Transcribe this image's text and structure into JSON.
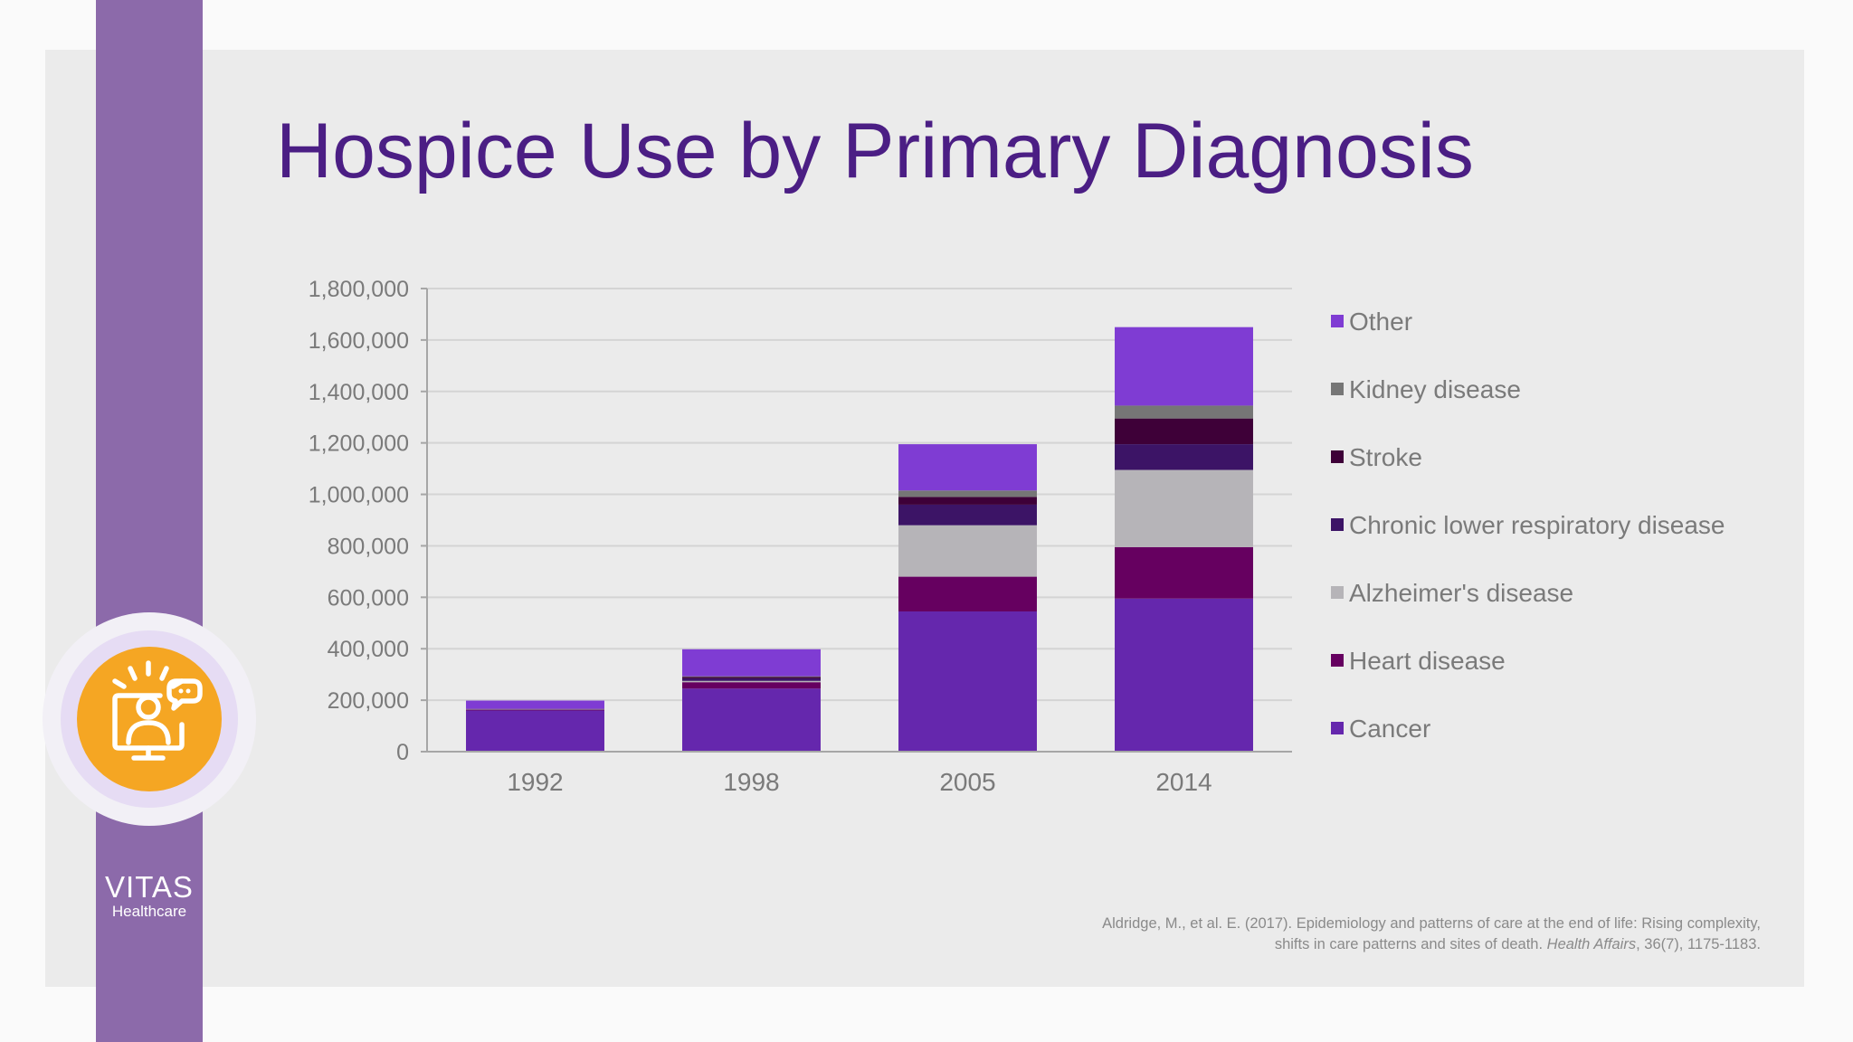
{
  "colors": {
    "panel": "#ebebeb",
    "side_band": "#8c6aaa",
    "title": "#4b1e84",
    "icon_circle": "#f5a623"
  },
  "slide": {
    "title": "Hospice Use by Primary Diagnosis",
    "logo": {
      "brand": "VITAS",
      "sub": "Healthcare"
    },
    "icon": "person-at-monitor-with-chat-icon",
    "citation": {
      "line1": "Aldridge, M., et al. E. (2017). Epidemiology and patterns of care at the end of life: Rising complexity,",
      "line2_prefix": "shifts in care patterns and sites of death. ",
      "journal": "Health Affairs",
      "line2_suffix": ", 36(7), 1175-1183."
    }
  },
  "chart_data": {
    "type": "bar",
    "stacked": true,
    "title": "",
    "xlabel": "",
    "ylabel": "",
    "categories": [
      "1992",
      "1998",
      "2005",
      "2014"
    ],
    "ylim": [
      0,
      1800000
    ],
    "yticks": [
      0,
      200000,
      400000,
      600000,
      800000,
      1000000,
      1200000,
      1400000,
      1600000,
      1800000
    ],
    "ytick_labels": [
      "0",
      "200,000",
      "400,000",
      "600,000",
      "800,000",
      "1,000,000",
      "1,200,000",
      "1,400,000",
      "1,600,000",
      "1,800,000"
    ],
    "grid": true,
    "legend_position": "right",
    "series": [
      {
        "name": "Cancer",
        "color": "#6527ad",
        "values": [
          160000,
          245000,
          545000,
          595000
        ]
      },
      {
        "name": "Heart disease",
        "color": "#660060",
        "values": [
          3000,
          25000,
          135000,
          200000
        ]
      },
      {
        "name": "Alzheimer's disease",
        "color": "#b6b4b8",
        "values": [
          1000,
          5000,
          200000,
          300000
        ]
      },
      {
        "name": "Chronic lower respiratory disease",
        "color": "#3c1466",
        "values": [
          1000,
          10000,
          80000,
          100000
        ]
      },
      {
        "name": "Stroke",
        "color": "#3e0038",
        "values": [
          1000,
          5000,
          30000,
          100000
        ]
      },
      {
        "name": "Kidney disease",
        "color": "#767676",
        "values": [
          500,
          3000,
          25000,
          50000
        ]
      },
      {
        "name": "Other",
        "color": "#7f3cd3",
        "values": [
          32000,
          105000,
          180000,
          305000
        ]
      }
    ]
  }
}
